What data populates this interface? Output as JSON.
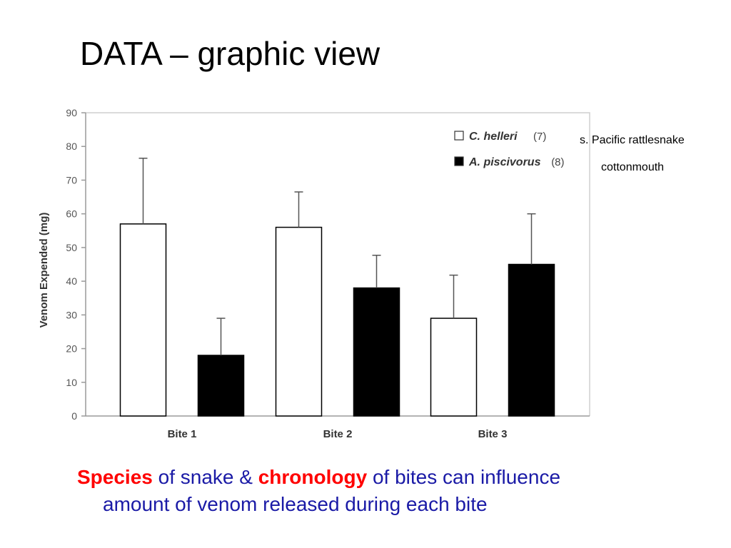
{
  "slide": {
    "title": "DATA – graphic view"
  },
  "annotations": {
    "species_1_common": "s. Pacific rattlesnake",
    "species_2_common": "cottonmouth"
  },
  "caption": {
    "part1": "Species",
    "part2": " of snake & ",
    "part3": "chronology",
    "part4": " of bites can influence",
    "part5": "amount of venom released during each bite"
  },
  "colors": {
    "caption_text": "#1a1aa6",
    "caption_emphasis": "#ff0000",
    "series_1_fill": "#ffffff",
    "series_2_fill": "#000000",
    "axis_text": "#555555"
  },
  "chart_data": {
    "type": "bar",
    "ylabel": "Venom Expended (mg)",
    "xlabel": "",
    "ylim": [
      0,
      90
    ],
    "yticks": [
      0,
      10,
      20,
      30,
      40,
      50,
      60,
      70,
      80,
      90
    ],
    "categories": [
      "Bite 1",
      "Bite 2",
      "Bite 3"
    ],
    "legend_position": "top-right",
    "grid": false,
    "series": [
      {
        "name": "C. helleri",
        "n_label": "(7)",
        "fill": "#ffffff",
        "values": [
          57,
          56,
          29
        ],
        "error_upper": [
          76.5,
          66.5,
          41.8
        ]
      },
      {
        "name": "A. piscivorus",
        "n_label": "(8)",
        "fill": "#000000",
        "values": [
          18,
          38,
          45
        ],
        "error_upper": [
          29,
          47.7,
          60
        ]
      }
    ]
  }
}
